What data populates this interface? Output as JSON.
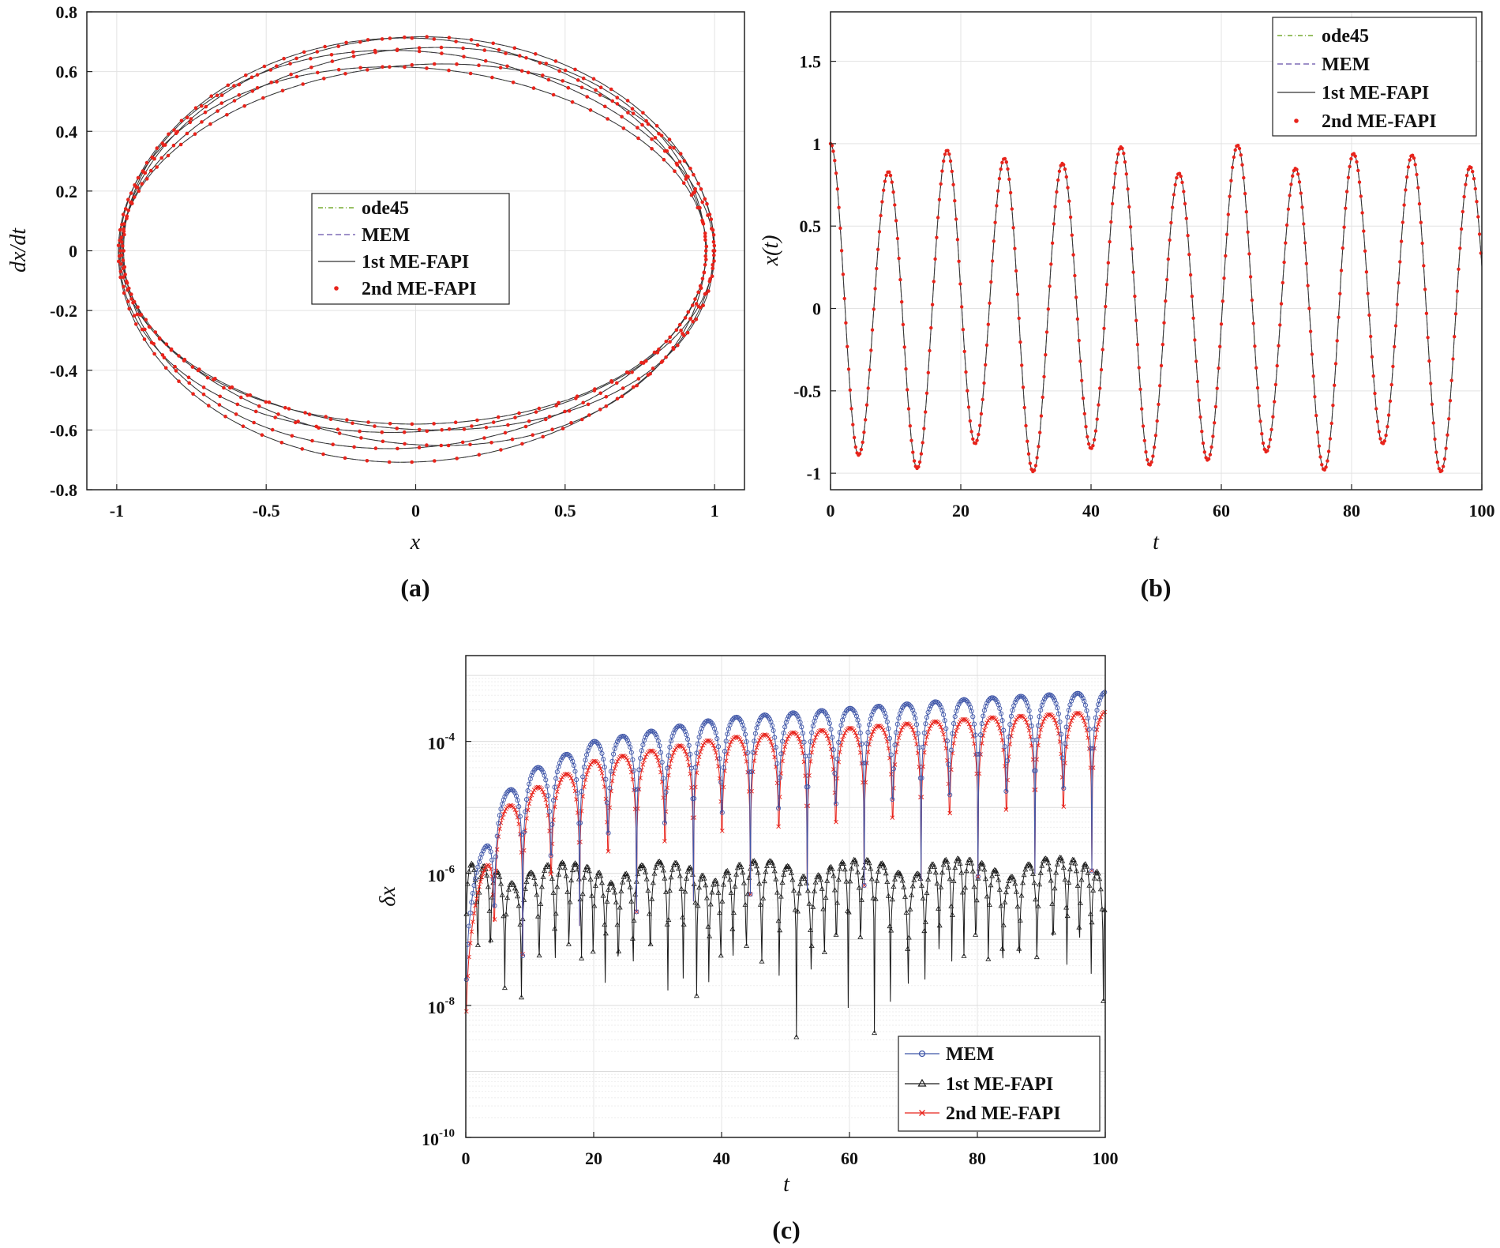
{
  "chart_data": [
    {
      "id": "a",
      "type": "line",
      "caption": "(a)",
      "xlabel": "x",
      "ylabel": "dx/dt",
      "xlim": [
        -1.1,
        1.1
      ],
      "ylim": [
        -0.8,
        0.8
      ],
      "xticks": [
        -1,
        -0.5,
        0,
        0.5,
        1
      ],
      "xtick_labels": [
        "-1",
        "-0.5",
        "0",
        "0.5",
        "1"
      ],
      "yticks": [
        0.8,
        0.6,
        0.4,
        0.2,
        0,
        -0.2,
        -0.4,
        -0.6,
        -0.8
      ],
      "ytick_labels": [
        "0.8",
        "0.6",
        "0.4",
        "0.2",
        "0",
        "-0.2",
        "-0.4",
        "-0.6",
        "-0.8"
      ],
      "grid": true,
      "legend": [
        "ode45",
        "MEM",
        "1st ME-FAPI",
        "2nd ME-FAPI"
      ],
      "legend_position": "center",
      "orbit": {
        "x_amplitude_range": [
          0.97,
          1.0
        ],
        "v_amplitude_range": [
          0.58,
          0.72
        ],
        "loops": 6
      },
      "series": [
        {
          "name": "ode45",
          "color": "#77ac30",
          "style": "dash-dot"
        },
        {
          "name": "MEM",
          "color": "#7e6bb6",
          "style": "dashed"
        },
        {
          "name": "1st ME-FAPI",
          "color": "#333333",
          "style": "solid"
        },
        {
          "name": "2nd ME-FAPI",
          "color": "#e8231b",
          "style": "dots"
        }
      ]
    },
    {
      "id": "b",
      "type": "line",
      "caption": "(b)",
      "xlabel": "t",
      "ylabel": "x(t)",
      "xlim": [
        0,
        100
      ],
      "ylim": [
        -1.1,
        1.8
      ],
      "xticks": [
        0,
        20,
        40,
        60,
        80,
        100
      ],
      "xtick_labels": [
        "0",
        "20",
        "40",
        "60",
        "80",
        "100"
      ],
      "yticks": [
        1.5,
        1,
        0.5,
        0,
        -0.5,
        -1
      ],
      "ytick_labels": [
        "1.5",
        "1",
        "0.5",
        "0",
        "-0.5",
        "-1"
      ],
      "grid": true,
      "legend": [
        "ode45",
        "MEM",
        "1st ME-FAPI",
        "2nd ME-FAPI"
      ],
      "legend_position": "top-right",
      "period_approx": 8.9,
      "extrema": {
        "t": [
          0,
          4.3,
          8.9,
          13.3,
          17.9,
          22.2,
          26.7,
          31.1,
          35.6,
          40.0,
          44.6,
          49.0,
          53.5,
          57.9,
          62.5,
          66.9,
          71.4,
          75.8,
          80.3,
          84.8,
          89.3,
          93.7,
          98.2
        ],
        "x": [
          1.0,
          -0.89,
          0.83,
          -0.97,
          0.96,
          -0.82,
          0.91,
          -0.99,
          0.88,
          -0.85,
          0.98,
          -0.95,
          0.82,
          -0.92,
          0.99,
          -0.87,
          0.85,
          -0.98,
          0.94,
          -0.82,
          0.93,
          -0.99,
          0.86
        ]
      },
      "series": [
        {
          "name": "ode45",
          "color": "#77ac30",
          "style": "dash-dot"
        },
        {
          "name": "MEM",
          "color": "#7e6bb6",
          "style": "dashed"
        },
        {
          "name": "1st ME-FAPI",
          "color": "#333333",
          "style": "solid"
        },
        {
          "name": "2nd ME-FAPI",
          "color": "#e8231b",
          "style": "dots"
        }
      ]
    },
    {
      "id": "c",
      "type": "line",
      "scale_y": "log",
      "caption": "(c)",
      "xlabel": "t",
      "ylabel": "δx",
      "xlim": [
        0,
        100
      ],
      "ylim": [
        1e-10,
        0.001
      ],
      "xticks": [
        0,
        20,
        40,
        60,
        80,
        100
      ],
      "xtick_labels": [
        "0",
        "20",
        "40",
        "60",
        "80",
        "100"
      ],
      "yticks": [
        -4,
        -6,
        -8,
        -10
      ],
      "ytick_base": "10",
      "ytick_exponents": [
        "-4",
        "-6",
        "-8",
        "-10"
      ],
      "grid": true,
      "legend": [
        "MEM",
        "1st ME-FAPI",
        "2nd ME-FAPI"
      ],
      "legend_position": "bottom-right",
      "series": [
        {
          "name": "MEM",
          "color": "#3f56a8",
          "marker": "circle",
          "envelope_log10": {
            "t": [
              0,
              5,
              10,
              20,
              40,
              60,
              80,
              100
            ],
            "v": [
              -6.5,
              -4.9,
              -4.45,
              -4.0,
              -3.65,
              -3.5,
              -3.35,
              -3.25
            ]
          }
        },
        {
          "name": "1st ME-FAPI",
          "color": "#1a1a1a",
          "marker": "triangle",
          "envelope_log10": {
            "t": [
              0,
              100
            ],
            "v": [
              -5.85,
              -5.75
            ]
          }
        },
        {
          "name": "2nd ME-FAPI",
          "color": "#e8231b",
          "marker": "x",
          "envelope_log10": {
            "t": [
              0,
              5,
              10,
              20,
              40,
              60,
              80,
              100
            ],
            "v": [
              -7.0,
              -5.1,
              -4.75,
              -4.3,
              -3.95,
              -3.8,
              -3.65,
              -3.55
            ]
          }
        }
      ]
    }
  ]
}
